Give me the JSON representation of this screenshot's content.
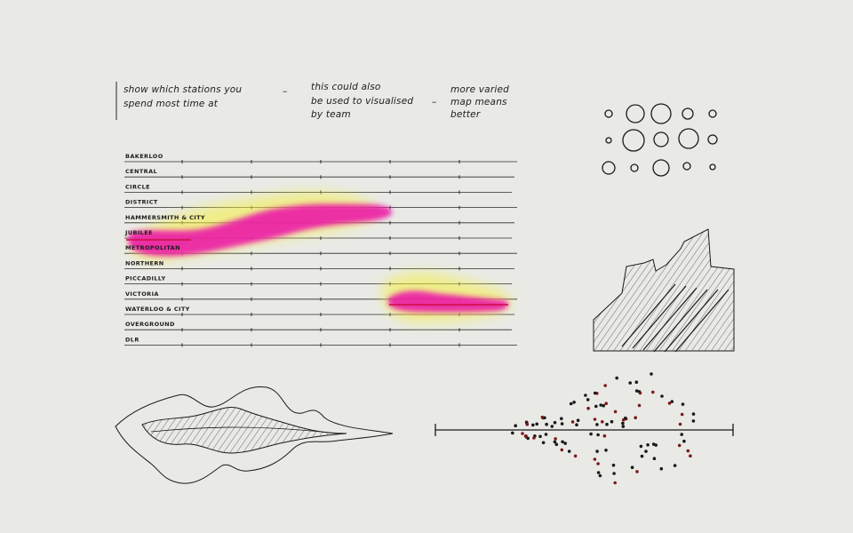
{
  "notes": [
    {
      "lines": [
        "show which stations you",
        "spend most time at"
      ]
    },
    {
      "lines": [
        "this could also",
        "be used to visualised",
        "by team"
      ]
    },
    {
      "lines": [
        "more varied",
        "map means",
        "better"
      ]
    }
  ],
  "note_dashes": [
    "–",
    "–"
  ],
  "lines_chart": {
    "labels": [
      "BAKERLOO",
      "CENTRAL",
      "CIRCLE",
      "DISTRICT",
      "HAMMERSMITH & CITY",
      "JUBILEE",
      "METROPOLITAN",
      "NORTHERN",
      "PICCADILLY",
      "VICTORIA",
      "WATERLOO & CITY",
      "OVERGROUND",
      "DLR"
    ],
    "highlight_colors": {
      "magenta": "#ec1ca8",
      "yellow": "#f4f03a",
      "red": "#d0104c"
    }
  },
  "ink_color": "#1a1a1a",
  "dot_colors": [
    "#1a1a1a",
    "#7a1a1a"
  ]
}
